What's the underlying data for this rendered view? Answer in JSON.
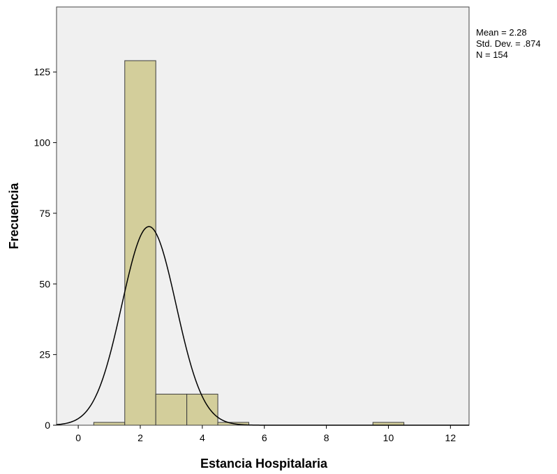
{
  "chart_data": {
    "type": "bar",
    "subtype": "histogram",
    "title": "",
    "xlabel": "Estancia Hospitalaria",
    "ylabel": "Frecuencia",
    "xlim": [
      -0.7,
      12.6
    ],
    "ylim": [
      0,
      148
    ],
    "x_ticks": [
      0,
      2,
      4,
      6,
      8,
      10,
      12
    ],
    "y_ticks": [
      0,
      25,
      50,
      75,
      100,
      125
    ],
    "bin_width": 1,
    "bins": [
      {
        "x": 1,
        "count": 1
      },
      {
        "x": 2,
        "count": 129
      },
      {
        "x": 3,
        "count": 11
      },
      {
        "x": 4,
        "count": 11
      },
      {
        "x": 5,
        "count": 1
      },
      {
        "x": 10,
        "count": 1
      }
    ],
    "normal_curve": {
      "mean": 2.28,
      "std_dev": 0.874,
      "n": 154
    },
    "stats": [
      "Mean = 2.28",
      "Std. Dev. = .874",
      "N = 154"
    ],
    "grid": false,
    "colors": {
      "bar_fill": "#d3ce9b",
      "bar_stroke": "#3c3c3c",
      "plot_background": "#f0f0f0",
      "curve": "#000000"
    }
  }
}
